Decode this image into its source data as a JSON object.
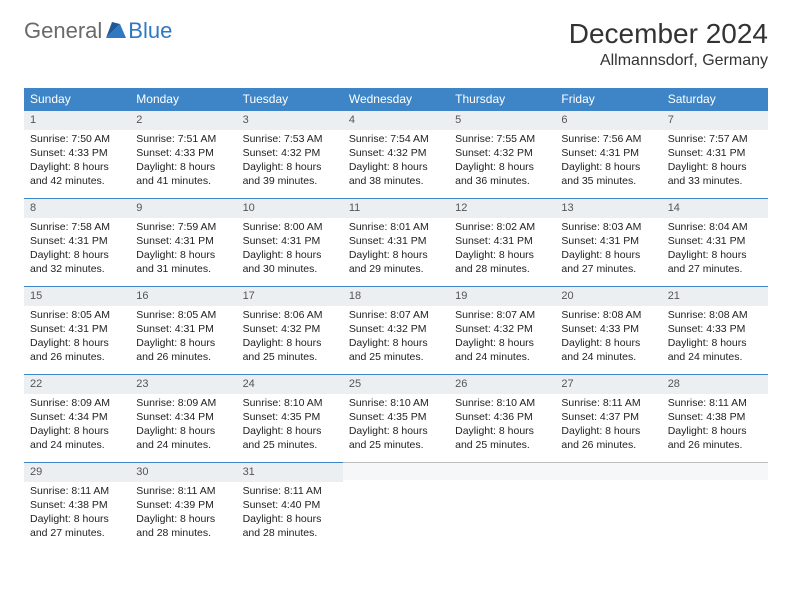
{
  "logo": {
    "text1": "General",
    "text2": "Blue"
  },
  "title": "December 2024",
  "location": "Allmannsdorf, Germany",
  "colors": {
    "header_bg": "#3d85c6",
    "header_text": "#ffffff",
    "daynum_bg": "#eceff1",
    "border": "#3d85c6",
    "logo_gray": "#6a6a6a",
    "logo_blue": "#2f78c2"
  },
  "weekdays": [
    "Sunday",
    "Monday",
    "Tuesday",
    "Wednesday",
    "Thursday",
    "Friday",
    "Saturday"
  ],
  "labels": {
    "sunrise": "Sunrise:",
    "sunset": "Sunset:",
    "daylight": "Daylight:"
  },
  "weeks": [
    [
      {
        "n": "1",
        "sr": "7:50 AM",
        "ss": "4:33 PM",
        "dl": "8 hours and 42 minutes."
      },
      {
        "n": "2",
        "sr": "7:51 AM",
        "ss": "4:33 PM",
        "dl": "8 hours and 41 minutes."
      },
      {
        "n": "3",
        "sr": "7:53 AM",
        "ss": "4:32 PM",
        "dl": "8 hours and 39 minutes."
      },
      {
        "n": "4",
        "sr": "7:54 AM",
        "ss": "4:32 PM",
        "dl": "8 hours and 38 minutes."
      },
      {
        "n": "5",
        "sr": "7:55 AM",
        "ss": "4:32 PM",
        "dl": "8 hours and 36 minutes."
      },
      {
        "n": "6",
        "sr": "7:56 AM",
        "ss": "4:31 PM",
        "dl": "8 hours and 35 minutes."
      },
      {
        "n": "7",
        "sr": "7:57 AM",
        "ss": "4:31 PM",
        "dl": "8 hours and 33 minutes."
      }
    ],
    [
      {
        "n": "8",
        "sr": "7:58 AM",
        "ss": "4:31 PM",
        "dl": "8 hours and 32 minutes."
      },
      {
        "n": "9",
        "sr": "7:59 AM",
        "ss": "4:31 PM",
        "dl": "8 hours and 31 minutes."
      },
      {
        "n": "10",
        "sr": "8:00 AM",
        "ss": "4:31 PM",
        "dl": "8 hours and 30 minutes."
      },
      {
        "n": "11",
        "sr": "8:01 AM",
        "ss": "4:31 PM",
        "dl": "8 hours and 29 minutes."
      },
      {
        "n": "12",
        "sr": "8:02 AM",
        "ss": "4:31 PM",
        "dl": "8 hours and 28 minutes."
      },
      {
        "n": "13",
        "sr": "8:03 AM",
        "ss": "4:31 PM",
        "dl": "8 hours and 27 minutes."
      },
      {
        "n": "14",
        "sr": "8:04 AM",
        "ss": "4:31 PM",
        "dl": "8 hours and 27 minutes."
      }
    ],
    [
      {
        "n": "15",
        "sr": "8:05 AM",
        "ss": "4:31 PM",
        "dl": "8 hours and 26 minutes."
      },
      {
        "n": "16",
        "sr": "8:05 AM",
        "ss": "4:31 PM",
        "dl": "8 hours and 26 minutes."
      },
      {
        "n": "17",
        "sr": "8:06 AM",
        "ss": "4:32 PM",
        "dl": "8 hours and 25 minutes."
      },
      {
        "n": "18",
        "sr": "8:07 AM",
        "ss": "4:32 PM",
        "dl": "8 hours and 25 minutes."
      },
      {
        "n": "19",
        "sr": "8:07 AM",
        "ss": "4:32 PM",
        "dl": "8 hours and 24 minutes."
      },
      {
        "n": "20",
        "sr": "8:08 AM",
        "ss": "4:33 PM",
        "dl": "8 hours and 24 minutes."
      },
      {
        "n": "21",
        "sr": "8:08 AM",
        "ss": "4:33 PM",
        "dl": "8 hours and 24 minutes."
      }
    ],
    [
      {
        "n": "22",
        "sr": "8:09 AM",
        "ss": "4:34 PM",
        "dl": "8 hours and 24 minutes."
      },
      {
        "n": "23",
        "sr": "8:09 AM",
        "ss": "4:34 PM",
        "dl": "8 hours and 24 minutes."
      },
      {
        "n": "24",
        "sr": "8:10 AM",
        "ss": "4:35 PM",
        "dl": "8 hours and 25 minutes."
      },
      {
        "n": "25",
        "sr": "8:10 AM",
        "ss": "4:35 PM",
        "dl": "8 hours and 25 minutes."
      },
      {
        "n": "26",
        "sr": "8:10 AM",
        "ss": "4:36 PM",
        "dl": "8 hours and 25 minutes."
      },
      {
        "n": "27",
        "sr": "8:11 AM",
        "ss": "4:37 PM",
        "dl": "8 hours and 26 minutes."
      },
      {
        "n": "28",
        "sr": "8:11 AM",
        "ss": "4:38 PM",
        "dl": "8 hours and 26 minutes."
      }
    ],
    [
      {
        "n": "29",
        "sr": "8:11 AM",
        "ss": "4:38 PM",
        "dl": "8 hours and 27 minutes."
      },
      {
        "n": "30",
        "sr": "8:11 AM",
        "ss": "4:39 PM",
        "dl": "8 hours and 28 minutes."
      },
      {
        "n": "31",
        "sr": "8:11 AM",
        "ss": "4:40 PM",
        "dl": "8 hours and 28 minutes."
      },
      null,
      null,
      null,
      null
    ]
  ]
}
